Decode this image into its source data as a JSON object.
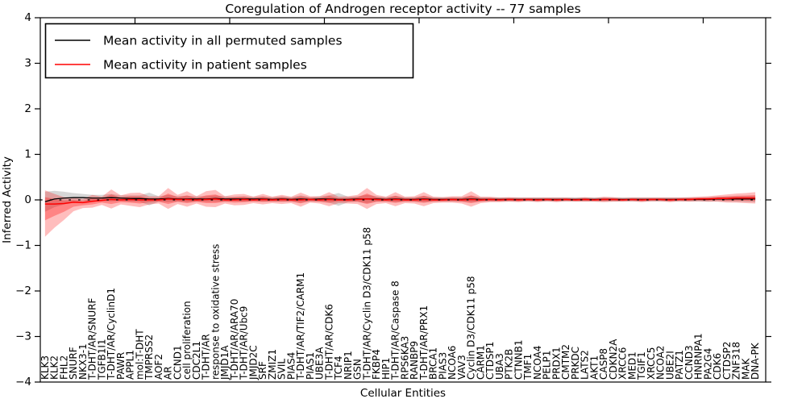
{
  "title": "Coregulation of Androgen receptor activity -- 77 samples",
  "legend": [
    {
      "label": "Mean activity in all permuted samples",
      "color": "#000000"
    },
    {
      "label": "Mean activity in patient samples",
      "color": "#ff0000"
    }
  ],
  "colors": {
    "permuted_line": "#000000",
    "patient_line": "#ff0000",
    "permuted_band": "#000000",
    "patient_band": "#ff0000",
    "zero_line": "#000000",
    "frame": "#000000"
  },
  "chart_data": {
    "type": "line",
    "title": "Coregulation of Androgen receptor activity -- 77 samples",
    "xlabel": "Cellular Entities",
    "ylabel": "Inferred Activity",
    "ylim": [
      -4,
      4
    ],
    "yticks": [
      4,
      3,
      2,
      1,
      0,
      -1,
      -2,
      -3,
      -4
    ],
    "ytick_labels": [
      "4",
      "3",
      "2",
      "1",
      "0",
      "−1",
      "−2",
      "−3",
      "−4"
    ],
    "xlim": [
      0,
      76.6
    ],
    "x_top_tick_interval": 10,
    "grid": false,
    "legend_position": "upper left",
    "zero_line_dashed": true,
    "categories": [
      "KLK3",
      "KLK2",
      "FHL2",
      "SNURF",
      "NKX3-1",
      "T-DHT/AR/SNURF",
      "TGFB1I1",
      "T-DHT/AR/CyclinD1",
      "PAWR",
      "APPL1",
      "mol:T-DHT",
      "TMPRSS2",
      "AOF2",
      "AR",
      "CCND1",
      "cell proliferation",
      "CDC2L1",
      "T-DHT/AR",
      "response to oxidative stress",
      "JMJD1A",
      "T-DHT/AR/ARA70",
      "T-DHT/AR/Ubc9",
      "JMJD2C",
      "SRF",
      "ZMIZ1",
      "SVIL",
      "PIAS4",
      "T-DHT/AR/TIF2/CARM1",
      "PIAS1",
      "UBE3A",
      "T-DHT/AR/CDK6",
      "TCF4",
      "NRIP1",
      "GSN",
      "T-DHT/AR/Cyclin D3/CDK11 p58",
      "FKBP4",
      "HIP1",
      "T-DHT/AR/Caspase 8",
      "RPS6KA3",
      "RANBP9",
      "T-DHT/AR/PRX1",
      "BRCA1",
      "PIAS3",
      "NCOA6",
      "VAV3",
      "Cyclin D3/CDK11 p58",
      "CARM1",
      "CTDSP1",
      "UBA3",
      "PTK2B",
      "CTNNB1",
      "TMF1",
      "NCOA4",
      "PELP1",
      "PRDX1",
      "CMTM2",
      "PRKDC",
      "LATS2",
      "AKT1",
      "CASP8",
      "CDKN2A",
      "XRCC6",
      "MED1",
      "TGIF1",
      "XRCC5",
      "NCOA2",
      "UBE2I",
      "PATZ1",
      "CCND3",
      "HNRNPA1",
      "PA2G4",
      "CDK6",
      "CTDSP2",
      "ZNF318",
      "MAK",
      "DNA-PK"
    ],
    "series": [
      {
        "name": "Mean activity in all permuted samples",
        "color": "#000000",
        "values": [
          -0.04,
          0.02,
          0.04,
          0.05,
          0.05,
          0.04,
          0.04,
          0.05,
          0.04,
          0.03,
          0.03,
          0.02,
          0.02,
          0.03,
          0.02,
          0.02,
          0.02,
          0.02,
          0.03,
          0.02,
          0.02,
          0.02,
          0.02,
          0.02,
          0.01,
          0.02,
          0.01,
          0.02,
          0.01,
          0.02,
          0.02,
          0.01,
          0.01,
          0.02,
          0.02,
          0.02,
          0.01,
          0.02,
          0.01,
          0.01,
          0.02,
          0.01,
          0.01,
          0.01,
          0.01,
          0.02,
          0.01,
          0.01,
          0.01,
          0.01,
          0.01,
          0.01,
          0.01,
          0.01,
          0.01,
          0.01,
          0.01,
          0.01,
          0.01,
          0.01,
          0.01,
          0.01,
          0.01,
          0.01,
          0.01,
          0.01,
          0.01,
          0.01,
          0.01,
          0.01,
          0.01,
          0.02,
          0.02,
          0.02,
          0.02,
          0.02
        ],
        "band_halfwidth": [
          0.22,
          0.18,
          0.14,
          0.1,
          0.08,
          0.07,
          0.07,
          0.08,
          0.06,
          0.07,
          0.07,
          0.14,
          0.06,
          0.08,
          0.06,
          0.07,
          0.06,
          0.06,
          0.07,
          0.06,
          0.05,
          0.06,
          0.05,
          0.06,
          0.05,
          0.06,
          0.05,
          0.08,
          0.05,
          0.06,
          0.08,
          0.14,
          0.06,
          0.06,
          0.09,
          0.06,
          0.05,
          0.07,
          0.05,
          0.05,
          0.07,
          0.05,
          0.05,
          0.05,
          0.05,
          0.07,
          0.05,
          0.045,
          0.045,
          0.045,
          0.045,
          0.045,
          0.045,
          0.045,
          0.045,
          0.045,
          0.045,
          0.045,
          0.045,
          0.045,
          0.045,
          0.045,
          0.045,
          0.045,
          0.045,
          0.045,
          0.045,
          0.045,
          0.045,
          0.045,
          0.05,
          0.05,
          0.055,
          0.06,
          0.065,
          0.07
        ]
      },
      {
        "name": "Mean activity in patient samples",
        "color": "#ff0000",
        "values": [
          -0.09,
          -0.09,
          -0.08,
          -0.05,
          -0.06,
          -0.03,
          -0.01,
          0.01,
          0.0,
          0.01,
          0.0,
          0.0,
          0.0,
          0.02,
          0.01,
          0.01,
          0.0,
          0.01,
          0.02,
          0.0,
          0.0,
          0.01,
          0.0,
          0.01,
          0.0,
          0.01,
          0.0,
          0.0,
          0.01,
          0.0,
          0.01,
          0.0,
          0.0,
          0.01,
          0.02,
          0.01,
          0.0,
          0.01,
          0.0,
          0.0,
          0.01,
          0.0,
          0.0,
          0.01,
          0.0,
          0.01,
          0.0,
          0.01,
          0.0,
          0.01,
          0.0,
          0.01,
          0.0,
          0.01,
          0.0,
          0.01,
          0.0,
          0.01,
          0.0,
          0.01,
          0.01,
          0.0,
          0.01,
          0.0,
          0.01,
          0.01,
          0.0,
          0.01,
          0.01,
          0.02,
          0.02,
          0.03,
          0.03,
          0.04,
          0.04,
          0.04
        ],
        "band_up": [
          0.3,
          0.22,
          0.14,
          0.1,
          0.08,
          0.14,
          0.08,
          0.22,
          0.1,
          0.14,
          0.16,
          0.08,
          0.08,
          0.24,
          0.1,
          0.18,
          0.08,
          0.18,
          0.2,
          0.08,
          0.12,
          0.12,
          0.07,
          0.12,
          0.07,
          0.1,
          0.07,
          0.16,
          0.07,
          0.08,
          0.16,
          0.07,
          0.08,
          0.1,
          0.24,
          0.1,
          0.07,
          0.16,
          0.07,
          0.08,
          0.16,
          0.07,
          0.06,
          0.07,
          0.08,
          0.18,
          0.07,
          0.06,
          0.05,
          0.05,
          0.05,
          0.04,
          0.05,
          0.04,
          0.05,
          0.04,
          0.04,
          0.05,
          0.04,
          0.06,
          0.05,
          0.04,
          0.04,
          0.05,
          0.04,
          0.04,
          0.05,
          0.04,
          0.05,
          0.05,
          0.06,
          0.07,
          0.09,
          0.1,
          0.11,
          0.13
        ],
        "band_down": [
          0.72,
          0.52,
          0.36,
          0.2,
          0.12,
          0.14,
          0.1,
          0.2,
          0.1,
          0.14,
          0.16,
          0.1,
          0.08,
          0.22,
          0.1,
          0.16,
          0.08,
          0.16,
          0.18,
          0.08,
          0.12,
          0.12,
          0.07,
          0.11,
          0.07,
          0.1,
          0.07,
          0.15,
          0.07,
          0.08,
          0.15,
          0.07,
          0.08,
          0.1,
          0.22,
          0.1,
          0.07,
          0.15,
          0.07,
          0.08,
          0.15,
          0.07,
          0.06,
          0.07,
          0.08,
          0.16,
          0.07,
          0.06,
          0.05,
          0.05,
          0.05,
          0.04,
          0.05,
          0.04,
          0.05,
          0.04,
          0.04,
          0.05,
          0.04,
          0.06,
          0.05,
          0.04,
          0.04,
          0.05,
          0.04,
          0.04,
          0.05,
          0.04,
          0.05,
          0.05,
          0.06,
          0.07,
          0.09,
          0.1,
          0.11,
          0.12
        ],
        "inner_band_scale": 0.5
      }
    ]
  }
}
